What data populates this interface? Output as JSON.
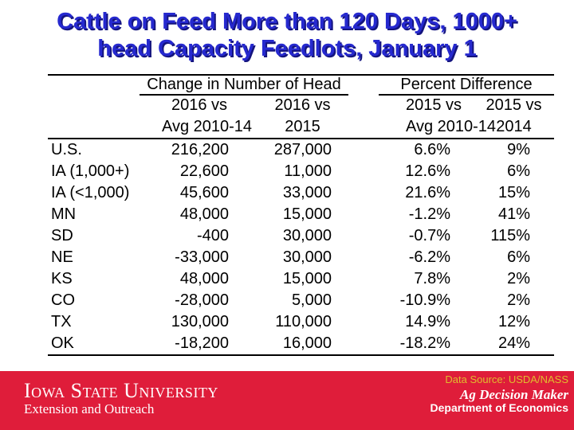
{
  "title": {
    "line1": "Cattle on Feed More than 120 Days, 1000+",
    "line2": "head Capacity Feedlots, January 1"
  },
  "table": {
    "group1": "Change in Number of Head",
    "group2": "Percent Difference",
    "columns": [
      {
        "l1": "2016 vs",
        "l2": "Avg 2010-14"
      },
      {
        "l1": "2016 vs",
        "l2": "2015"
      },
      {
        "l1": "2015 vs",
        "l2": "Avg 2010-14"
      },
      {
        "l1": "2015 vs",
        "l2": "2014"
      }
    ],
    "rows": [
      {
        "label": "U.S.",
        "v1": "216,200",
        "v2": "287,000",
        "v3": "6.6%",
        "v4": "9%"
      },
      {
        "label": "IA (1,000+)",
        "v1": "22,600",
        "v2": "11,000",
        "v3": "12.6%",
        "v4": "6%"
      },
      {
        "label": "IA (<1,000)",
        "v1": "45,600",
        "v2": "33,000",
        "v3": "21.6%",
        "v4": "15%"
      },
      {
        "label": "MN",
        "v1": "48,000",
        "v2": "15,000",
        "v3": "-1.2%",
        "v4": "41%"
      },
      {
        "label": "SD",
        "v1": "-400",
        "v2": "30,000",
        "v3": "-0.7%",
        "v4": "115%"
      },
      {
        "label": "NE",
        "v1": "-33,000",
        "v2": "30,000",
        "v3": "-6.2%",
        "v4": "6%"
      },
      {
        "label": "KS",
        "v1": "48,000",
        "v2": "15,000",
        "v3": "7.8%",
        "v4": "2%"
      },
      {
        "label": "CO",
        "v1": "-28,000",
        "v2": "5,000",
        "v3": "-10.9%",
        "v4": "2%"
      },
      {
        "label": "TX",
        "v1": "130,000",
        "v2": "110,000",
        "v3": "14.9%",
        "v4": "12%"
      },
      {
        "label": "OK",
        "v1": "-18,200",
        "v2": "16,000",
        "v3": "-18.2%",
        "v4": "24%"
      }
    ]
  },
  "footer": {
    "data_source": "Data Source: USDA/NASS",
    "logo_title": "Iowa State University",
    "logo_subtitle": "Extension and Outreach",
    "brand_title": "Ag Decision Maker",
    "brand_subtitle": "Department of Economics"
  },
  "colors": {
    "title_blue": "#2629cf",
    "banner_red": "#df1d3a",
    "source_yellow": "#e0bc2e"
  }
}
